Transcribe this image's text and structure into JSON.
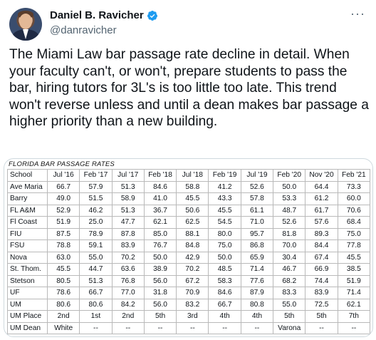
{
  "tweet": {
    "author_name": "Daniel B. Ravicher",
    "handle": "@danravicher",
    "more_icon": "more-icon",
    "text": "The Miami Law bar passage rate decline in detail. When your faculty can't, or won't, prepare students to pass the bar, hiring tutors for 3L's is too little too late. This trend won't reverse unless and until a dean makes bar passage a higher priority than a new building."
  },
  "table": {
    "title": "FLORIDA BAR PASSAGE RATES",
    "columns": [
      "School",
      "Jul '16",
      "Feb '17",
      "Jul '17",
      "Feb '18",
      "Jul '18",
      "Feb '19",
      "Jul '19",
      "Feb '20",
      "Nov '20",
      "Feb '21"
    ],
    "rows": [
      [
        "Ave Maria",
        "66.7",
        "57.9",
        "51.3",
        "84.6",
        "58.8",
        "41.2",
        "52.6",
        "50.0",
        "64.4",
        "73.3"
      ],
      [
        "Barry",
        "49.0",
        "51.5",
        "58.9",
        "41.0",
        "45.5",
        "43.3",
        "57.8",
        "53.3",
        "61.2",
        "60.0"
      ],
      [
        "FL A&M",
        "52.9",
        "46.2",
        "51.3",
        "36.7",
        "50.6",
        "45.5",
        "61.1",
        "48.7",
        "61.7",
        "70.6"
      ],
      [
        "Fl Coast",
        "51.9",
        "25.0",
        "47.7",
        "62.1",
        "62.5",
        "54.5",
        "71.0",
        "52.6",
        "57.6",
        "68.4"
      ],
      [
        "FIU",
        "87.5",
        "78.9",
        "87.8",
        "85.0",
        "88.1",
        "80.0",
        "95.7",
        "81.8",
        "89.3",
        "75.0"
      ],
      [
        "FSU",
        "78.8",
        "59.1",
        "83.9",
        "76.7",
        "84.8",
        "75.0",
        "86.8",
        "70.0",
        "84.4",
        "77.8"
      ],
      [
        "Nova",
        "63.0",
        "55.0",
        "70.2",
        "50.0",
        "42.9",
        "50.0",
        "65.9",
        "30.4",
        "67.4",
        "45.5"
      ],
      [
        "St. Thom.",
        "45.5",
        "44.7",
        "63.6",
        "38.9",
        "70.2",
        "48.5",
        "71.4",
        "46.7",
        "66.9",
        "38.5"
      ],
      [
        "Stetson",
        "80.5",
        "51.3",
        "76.8",
        "56.0",
        "67.2",
        "58.3",
        "77.6",
        "68.2",
        "74.4",
        "51.9"
      ],
      [
        "UF",
        "78.6",
        "66.7",
        "77.0",
        "31.8",
        "70.9",
        "84.6",
        "87.9",
        "83.3",
        "83.9",
        "71.4"
      ],
      [
        "UM",
        "80.6",
        "80.6",
        "84.2",
        "56.0",
        "83.2",
        "66.7",
        "80.8",
        "55.0",
        "72.5",
        "62.1"
      ],
      [
        "UM Place",
        "2nd",
        "1st",
        "2nd",
        "5th",
        "3rd",
        "4th",
        "4th",
        "5th",
        "5th",
        "7th"
      ],
      [
        "UM Dean",
        "White",
        "--",
        "--",
        "--",
        "--",
        "--",
        "--",
        "Varona",
        "--",
        "--"
      ]
    ]
  },
  "colors": {
    "verified": "#1d9bf0",
    "handle": "#536471",
    "border": "#cfd9de"
  }
}
